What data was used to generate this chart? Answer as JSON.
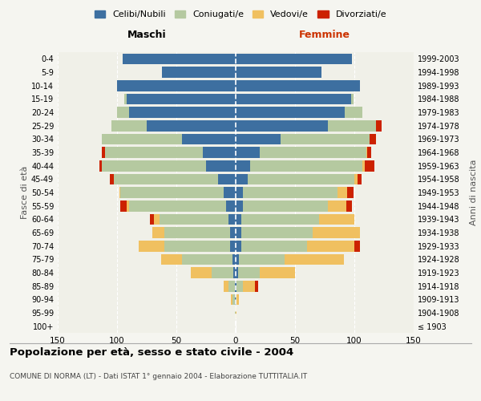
{
  "age_groups": [
    "100+",
    "95-99",
    "90-94",
    "85-89",
    "80-84",
    "75-79",
    "70-74",
    "65-69",
    "60-64",
    "55-59",
    "50-54",
    "45-49",
    "40-44",
    "35-39",
    "30-34",
    "25-29",
    "20-24",
    "15-19",
    "10-14",
    "5-9",
    "0-4"
  ],
  "birth_years": [
    "≤ 1903",
    "1904-1908",
    "1909-1913",
    "1914-1918",
    "1919-1923",
    "1924-1928",
    "1929-1933",
    "1934-1938",
    "1939-1943",
    "1944-1948",
    "1949-1953",
    "1954-1958",
    "1959-1963",
    "1964-1968",
    "1969-1973",
    "1974-1978",
    "1979-1983",
    "1984-1988",
    "1989-1993",
    "1994-1998",
    "1999-2003"
  ],
  "maschi": {
    "celibi": [
      0,
      0,
      1,
      1,
      2,
      3,
      5,
      5,
      6,
      8,
      10,
      15,
      25,
      28,
      45,
      75,
      90,
      92,
      100,
      62,
      95
    ],
    "coniugati": [
      0,
      1,
      2,
      5,
      18,
      42,
      55,
      55,
      58,
      82,
      87,
      88,
      88,
      82,
      68,
      30,
      10,
      2,
      0,
      0,
      0
    ],
    "vedovi": [
      0,
      0,
      1,
      4,
      18,
      18,
      22,
      10,
      5,
      2,
      1,
      0,
      0,
      0,
      0,
      0,
      0,
      0,
      0,
      0,
      0
    ],
    "divorziati": [
      0,
      0,
      0,
      0,
      0,
      0,
      0,
      0,
      3,
      5,
      0,
      3,
      2,
      3,
      0,
      0,
      0,
      0,
      0,
      0,
      0
    ]
  },
  "femmine": {
    "nubili": [
      0,
      0,
      0,
      1,
      2,
      3,
      5,
      5,
      5,
      6,
      6,
      10,
      12,
      20,
      38,
      78,
      92,
      97,
      105,
      72,
      98
    ],
    "coniugate": [
      0,
      0,
      1,
      5,
      18,
      38,
      55,
      60,
      65,
      72,
      80,
      90,
      95,
      90,
      75,
      40,
      15,
      2,
      0,
      0,
      0
    ],
    "vedove": [
      0,
      1,
      2,
      10,
      30,
      50,
      40,
      40,
      30,
      15,
      8,
      3,
      2,
      1,
      0,
      0,
      0,
      0,
      0,
      0,
      0
    ],
    "divorziate": [
      0,
      0,
      0,
      3,
      0,
      0,
      5,
      0,
      0,
      5,
      5,
      3,
      8,
      3,
      5,
      5,
      0,
      0,
      0,
      0,
      0
    ]
  },
  "colors": {
    "celibi": "#3d6fa0",
    "coniugati": "#b5c9a0",
    "vedovi": "#f0c060",
    "divorziati": "#cc2200"
  },
  "title": "Popolazione per età, sesso e stato civile - 2004",
  "subtitle": "COMUNE DI NORMA (LT) - Dati ISTAT 1° gennaio 2004 - Elaborazione TUTTITALIA.IT",
  "xlabel_left": "Maschi",
  "xlabel_right": "Femmine",
  "ylabel_left": "Fasce di età",
  "ylabel_right": "Anni di nascita",
  "xlim": 150,
  "legend_labels": [
    "Celibi/Nubili",
    "Coniugati/e",
    "Vedovi/e",
    "Divorziati/e"
  ],
  "bg_color": "#f5f5f0",
  "plot_bg": "#f0f0e8"
}
